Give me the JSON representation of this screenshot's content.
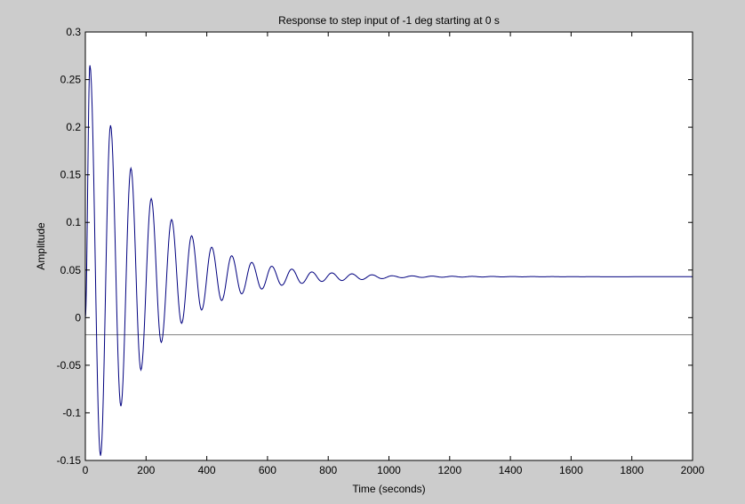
{
  "chart_data": {
    "type": "line",
    "title": "Response to step input of -1 deg starting at 0 s",
    "xlabel": "Time (seconds)",
    "ylabel": "Amplitude",
    "xlim": [
      0,
      2000
    ],
    "ylim": [
      -0.15,
      0.3
    ],
    "xticks": [
      0,
      200,
      400,
      600,
      800,
      1000,
      1200,
      1400,
      1600,
      1800,
      2000
    ],
    "yticks": [
      -0.15,
      -0.1,
      -0.05,
      0,
      0.05,
      0.1,
      0.15,
      0.2,
      0.25,
      0.3
    ],
    "xtick_labels": [
      "0",
      "200",
      "400",
      "600",
      "800",
      "1000",
      "1200",
      "1400",
      "1600",
      "1800",
      "2000"
    ],
    "ytick_labels": [
      "-0.15",
      "-0.1",
      "-0.05",
      "0",
      "0.05",
      "0.1",
      "0.15",
      "0.2",
      "0.25",
      "0.3"
    ],
    "grid": false,
    "series": [
      {
        "color": "#00007f",
        "steady_state": 0.043,
        "oscillation_period": 66,
        "peaks": [
          [
            15,
            0.265
          ],
          [
            83,
            0.202
          ],
          [
            150,
            0.157
          ],
          [
            217,
            0.125
          ],
          [
            284,
            0.103
          ],
          [
            350,
            0.086
          ],
          [
            416,
            0.074
          ],
          [
            482,
            0.065
          ],
          [
            548,
            0.058
          ],
          [
            614,
            0.054
          ],
          [
            680,
            0.051
          ],
          [
            746,
            0.048
          ],
          [
            812,
            0.047
          ],
          [
            878,
            0.046
          ],
          [
            944,
            0.045
          ],
          [
            1010,
            0.044
          ]
        ],
        "troughs": [
          [
            50,
            -0.145
          ],
          [
            117,
            -0.093
          ],
          [
            183,
            -0.055
          ],
          [
            250,
            -0.026
          ],
          [
            317,
            -0.006
          ],
          [
            383,
            0.008
          ],
          [
            449,
            0.018
          ],
          [
            515,
            0.025
          ],
          [
            581,
            0.03
          ],
          [
            647,
            0.034
          ],
          [
            713,
            0.036
          ],
          [
            779,
            0.038
          ],
          [
            845,
            0.039
          ],
          [
            911,
            0.04
          ],
          [
            977,
            0.041
          ],
          [
            1043,
            0.042
          ]
        ]
      }
    ],
    "reference_line": {
      "y": -0.018,
      "color": "#808080"
    }
  }
}
